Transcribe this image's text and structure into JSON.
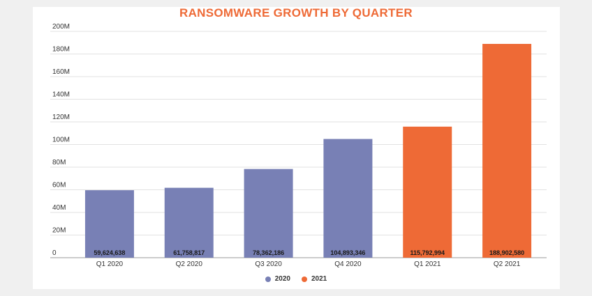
{
  "chart_data": {
    "type": "bar",
    "title": "RANSOMWARE GROWTH BY QUARTER",
    "title_color": "#ee6a36",
    "categories": [
      "Q1 2020",
      "Q2 2020",
      "Q3 2020",
      "Q4 2020",
      "Q1 2021",
      "Q2 2021"
    ],
    "values": [
      59624638,
      61758817,
      78362186,
      104893346,
      115792994,
      188902580
    ],
    "data_labels": [
      "59,624,638",
      "61,758,817",
      "78,362,186",
      "104,893,346",
      "115,792,994",
      "188,902,580"
    ],
    "bar_series": [
      "2020",
      "2020",
      "2020",
      "2020",
      "2021",
      "2021"
    ],
    "series": [
      {
        "name": "2020",
        "color": "#7880b5"
      },
      {
        "name": "2021",
        "color": "#ee6a36"
      }
    ],
    "ylim": [
      0,
      200000000
    ],
    "yticks": [
      0,
      20000000,
      40000000,
      60000000,
      80000000,
      100000000,
      120000000,
      140000000,
      160000000,
      180000000,
      200000000
    ],
    "ytick_labels": [
      "0",
      "20M",
      "40M",
      "60M",
      "80M",
      "100M",
      "120M",
      "140M",
      "160M",
      "180M",
      "200M"
    ],
    "xlabel": "",
    "ylabel": "",
    "grid": true,
    "legend_position": "bottom"
  }
}
